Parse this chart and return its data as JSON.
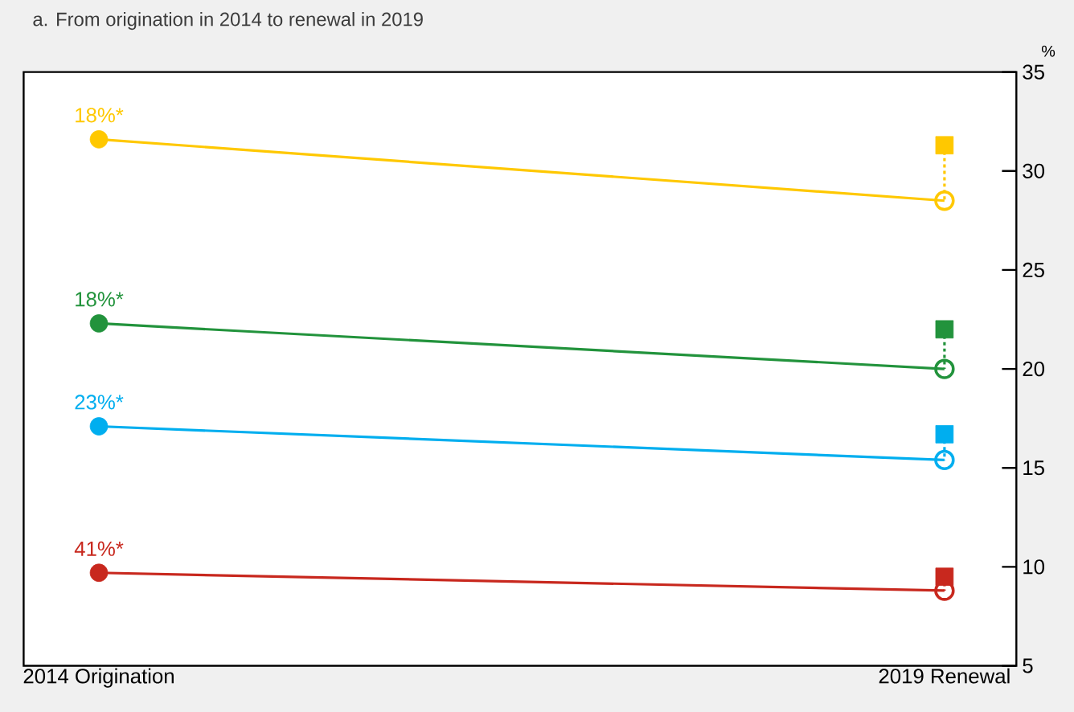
{
  "chart_data": {
    "type": "line",
    "title": "a. From origination in 2014 to renewal in 2019",
    "ylabel": "%",
    "categories": [
      "2014 Origination",
      "2019 Renewal"
    ],
    "ylim": [
      5,
      35
    ],
    "yticks": [
      5,
      10,
      15,
      20,
      25,
      30,
      35
    ],
    "marker": "circle",
    "series": [
      {
        "color": "#ffc800",
        "values": [
          31.6,
          28.5
        ]
      },
      {
        "color": "#22933c",
        "values": [
          22.3,
          20.0
        ]
      },
      {
        "color": "#00aeef",
        "values": [
          17.1,
          15.4
        ]
      },
      {
        "color": "#c8281e",
        "values": [
          9.7,
          8.8
        ]
      },
      {
        "type": "line",
        "line_style": "dotted",
        "marker": "square",
        "color": "#ffc800",
        "x": [
          "2019 Renewal",
          "2019 Renewal"
        ],
        "values": [
          31.3,
          28.5
        ]
      },
      {
        "type": "line",
        "line_style": "dotted",
        "marker": "square",
        "color": "#22933c",
        "x": [
          "2019 Renewal",
          "2019 Renewal"
        ],
        "values": [
          22.0,
          20.0
        ]
      },
      {
        "type": "line",
        "line_style": "dotted",
        "marker": "square",
        "color": "#00aeef",
        "x": [
          "2019 Renewal",
          "2019 Renewal"
        ],
        "values": [
          16.7,
          15.4
        ]
      },
      {
        "type": "line",
        "line_style": "dotted",
        "marker": "square",
        "color": "#c8281e",
        "x": [
          "2019 Renewal",
          "2019 Renewal"
        ],
        "values": [
          9.5,
          8.8
        ]
      }
    ],
    "annotations": [
      {
        "text": "18%*",
        "x": "2014 Origination",
        "y": 31.6
      },
      {
        "text": "18%*",
        "x": "2014 Origination",
        "y": 22.3
      },
      {
        "text": "23%*",
        "x": "2014 Origination",
        "y": 17.1
      },
      {
        "text": "41%*",
        "x": "2014 Origination",
        "y": 9.7
      }
    ]
  }
}
